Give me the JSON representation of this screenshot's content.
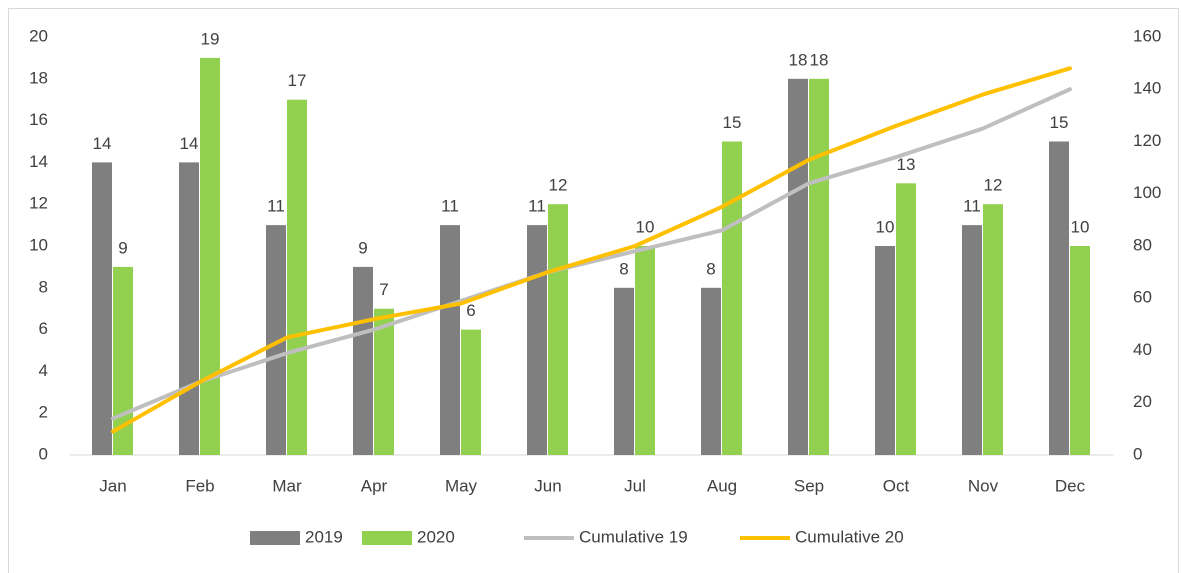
{
  "chart_data": {
    "type": "bar_line",
    "categories": [
      "Jan",
      "Feb",
      "Mar",
      "Apr",
      "May",
      "Jun",
      "Jul",
      "Aug",
      "Sep",
      "Oct",
      "Nov",
      "Dec"
    ],
    "series": [
      {
        "name": "2019",
        "type": "bar",
        "color": "#7f7f7f",
        "values": [
          14,
          14,
          11,
          9,
          11,
          11,
          8,
          8,
          18,
          10,
          11,
          15
        ]
      },
      {
        "name": "2020",
        "type": "bar",
        "color": "#92d050",
        "values": [
          9,
          19,
          17,
          7,
          6,
          12,
          10,
          15,
          18,
          13,
          12,
          10
        ]
      },
      {
        "name": "Cumulative 19",
        "type": "line",
        "axis": "y2",
        "color": "#bfbfbf",
        "values": [
          14,
          28,
          39,
          48,
          59,
          70,
          78,
          86,
          104,
          114,
          125,
          140
        ]
      },
      {
        "name": "Cumulative 20",
        "type": "line",
        "axis": "y2",
        "color": "#ffc000",
        "values": [
          9,
          28,
          45,
          52,
          58,
          70,
          80,
          95,
          113,
          126,
          138,
          148
        ]
      }
    ],
    "ylim": [
      0,
      20
    ],
    "yticks": [
      0,
      2,
      4,
      6,
      8,
      10,
      12,
      14,
      16,
      18,
      20
    ],
    "y2lim": [
      0,
      160
    ],
    "y2ticks": [
      0,
      20,
      40,
      60,
      80,
      100,
      120,
      140,
      160
    ],
    "grid": false,
    "legend": "bottom"
  }
}
